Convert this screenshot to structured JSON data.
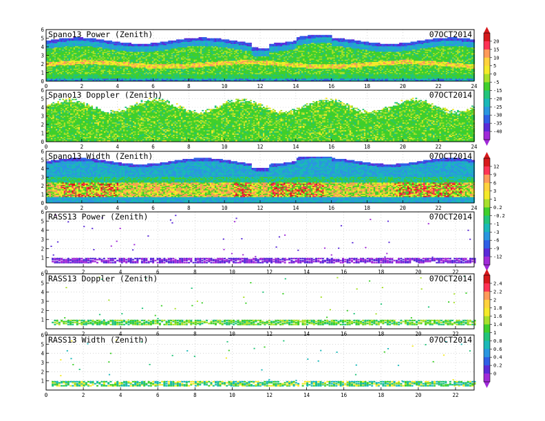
{
  "chart_data": [
    {
      "type": "heatmap",
      "title": "Spano13 Power (Zenith)",
      "date": "07OCT2014",
      "x_range": [
        0,
        24
      ],
      "y_range": [
        0,
        6
      ],
      "x_ticks": [
        0,
        2,
        4,
        6,
        8,
        10,
        12,
        14,
        16,
        18,
        20,
        22,
        24
      ],
      "y_ticks": [
        0,
        1,
        2,
        3,
        4,
        5,
        6
      ],
      "grid": true,
      "colorbar": "power",
      "field": "power",
      "description_values": {
        "top_height_km": 4.2,
        "peak_height_km": 1.9
      }
    },
    {
      "type": "heatmap",
      "title": "Spano13 Doppler (Zenith)",
      "date": "07OCT2014",
      "x_range": [
        0,
        24
      ],
      "y_range": [
        0,
        6
      ],
      "x_ticks": [
        0,
        2,
        4,
        6,
        8,
        10,
        12,
        14,
        16,
        18,
        20,
        22,
        24
      ],
      "y_ticks": [
        0,
        1,
        2,
        3,
        4,
        5,
        6
      ],
      "grid": true,
      "colorbar": "power",
      "field": "doppler"
    },
    {
      "type": "heatmap",
      "title": "Spano13 Width (Zenith)",
      "date": "07OCT2014",
      "x_range": [
        0,
        24
      ],
      "y_range": [
        0,
        6
      ],
      "x_ticks": [
        0,
        2,
        4,
        6,
        8,
        10,
        12,
        14,
        16,
        18,
        20,
        22,
        24
      ],
      "y_ticks": [
        0,
        1,
        2,
        3,
        4,
        5,
        6
      ],
      "grid": true,
      "colorbar": "width",
      "field": "width"
    },
    {
      "type": "heatmap",
      "title": "RASS13 Power (Zenith)",
      "date": "07OCT2014",
      "x_range": [
        0,
        23
      ],
      "y_range": [
        0,
        6
      ],
      "x_ticks": [
        0,
        2,
        4,
        6,
        8,
        10,
        12,
        14,
        16,
        18,
        20,
        22
      ],
      "y_ticks": [
        1,
        2,
        3,
        4,
        5,
        6
      ],
      "grid": true,
      "colorbar": "width",
      "field": "rass_power"
    },
    {
      "type": "heatmap",
      "title": "RASS13 Doppler (Zenith)",
      "date": "07OCT2014",
      "x_range": [
        0,
        23
      ],
      "y_range": [
        0,
        6
      ],
      "x_ticks": [
        0,
        2,
        4,
        6,
        8,
        10,
        12,
        14,
        16,
        18,
        20,
        22
      ],
      "y_ticks": [
        1,
        2,
        3,
        4,
        5,
        6
      ],
      "grid": true,
      "colorbar": "rass",
      "field": "rass_doppler"
    },
    {
      "type": "heatmap",
      "title": "RASS13 Width (Zenith)",
      "date": "07OCT2014",
      "x_range": [
        0,
        23
      ],
      "y_range": [
        0,
        6
      ],
      "x_ticks": [
        0,
        2,
        4,
        6,
        8,
        10,
        12,
        14,
        16,
        18,
        20,
        22
      ],
      "y_ticks": [
        1,
        2,
        3,
        4,
        5,
        6
      ],
      "grid": true,
      "colorbar": "rass",
      "field": "rass_width"
    }
  ],
  "colorbars": {
    "power": {
      "labels": [
        "20",
        "15",
        "10",
        "5",
        "0",
        "-5",
        "-15",
        "-20",
        "-25",
        "-30",
        "-35",
        "-40"
      ],
      "colors": [
        "#d7191c",
        "#ff3355",
        "#ff9a5a",
        "#ffd23c",
        "#f4ea2a",
        "#a8e02a",
        "#3fcf2a",
        "#22c47a",
        "#1ab8b8",
        "#2a96e0",
        "#2f5fe6",
        "#5a2ad8",
        "#a12ad8"
      ]
    },
    "width": {
      "labels": [
        "12",
        "9",
        "6",
        "3",
        "1",
        "0.2",
        "-0.2",
        "-1",
        "-3",
        "-6",
        "-9",
        "-12"
      ],
      "colors": [
        "#d7191c",
        "#ff3355",
        "#ff9a5a",
        "#ffd23c",
        "#f4ea2a",
        "#a8e02a",
        "#3fcf2a",
        "#22c47a",
        "#1ab8b8",
        "#2a96e0",
        "#2f5fe6",
        "#5a2ad8",
        "#a12ad8"
      ]
    },
    "rass": {
      "labels": [
        "2.4",
        "2.2",
        "2",
        "1.8",
        "1.6",
        "1.4",
        "1",
        "0.8",
        "0.6",
        "0.4",
        "0.2",
        "0"
      ],
      "colors": [
        "#d7191c",
        "#ff3355",
        "#ff9a5a",
        "#ffd23c",
        "#f4ea2a",
        "#a8e02a",
        "#3fcf2a",
        "#22c47a",
        "#1ab8b8",
        "#2a96e0",
        "#2f5fe6",
        "#5a2ad8",
        "#a12ad8"
      ]
    }
  }
}
